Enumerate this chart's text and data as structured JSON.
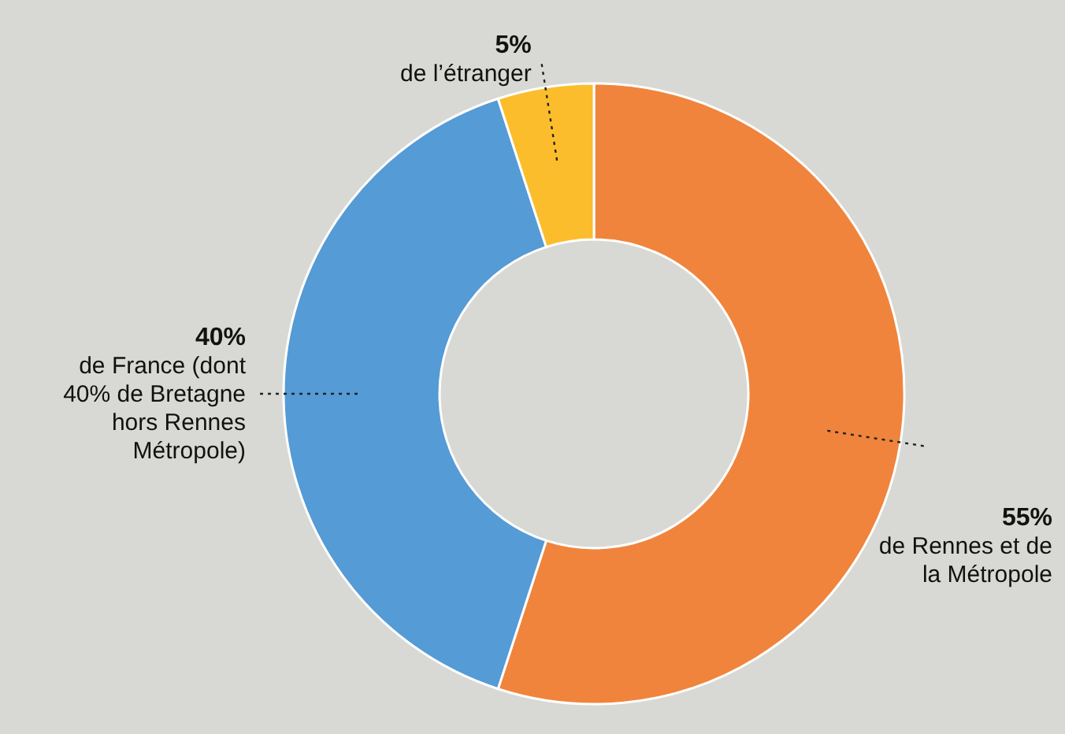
{
  "chart_data": {
    "type": "donut",
    "categories": [
      "de Rennes et de la Métropole",
      "de France (dont 40% de Bretagne hors Rennes Métropole)",
      "de l’étranger"
    ],
    "values": [
      55,
      40,
      5
    ],
    "value_labels": [
      "55%",
      "40%",
      "5%"
    ],
    "colors": [
      "#f0843c",
      "#559bd6",
      "#fbbd2c"
    ]
  }
}
